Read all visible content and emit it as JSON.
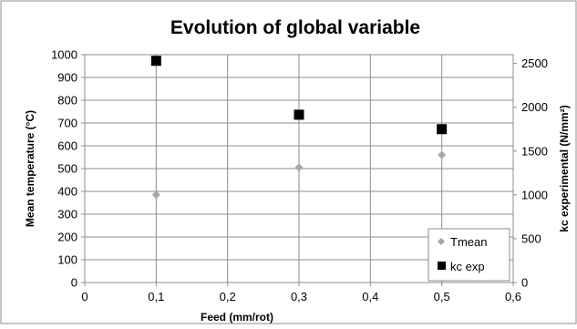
{
  "chart_data": {
    "type": "scatter",
    "title": "Evolution of global variable",
    "xlabel": "Feed (mm/rot)",
    "ylabel": "Mean temperature (°C)",
    "y2label": "kc experimental (N/mm²)",
    "xlim": [
      0,
      0.6
    ],
    "ylim": [
      0,
      1000
    ],
    "y2lim": [
      0,
      2600
    ],
    "xticks": [
      "0",
      "0,1",
      "0,2",
      "0,3",
      "0,4",
      "0,5",
      "0,6"
    ],
    "yticks": [
      "0",
      "100",
      "200",
      "300",
      "400",
      "500",
      "600",
      "700",
      "800",
      "900",
      "1000"
    ],
    "y2ticks": [
      "0",
      "500",
      "1000",
      "1500",
      "2000",
      "2500"
    ],
    "grid": true,
    "legend_position": "bottom-right",
    "series": [
      {
        "name": "Tmean",
        "axis": "left",
        "marker": "diamond",
        "color": "#a6a6a6",
        "x": [
          0.1,
          0.3,
          0.5
        ],
        "y": [
          385,
          505,
          560
        ]
      },
      {
        "name": "kc exp",
        "axis": "right",
        "marker": "square",
        "color": "#000000",
        "x": [
          0.1,
          0.3,
          0.5
        ],
        "y": [
          2530,
          1915,
          1750
        ]
      }
    ]
  }
}
